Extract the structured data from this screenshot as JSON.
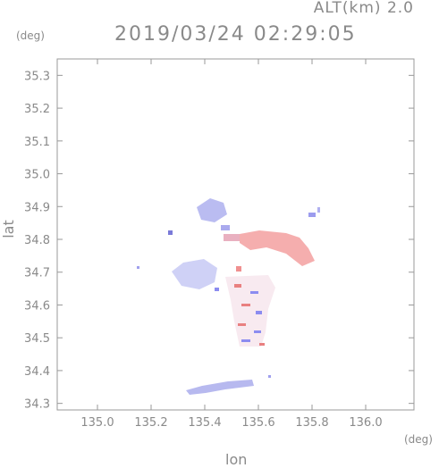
{
  "header": {
    "altitude_label": "ALT(km) 2.0",
    "timestamp": "2019/03/24 02:29:05"
  },
  "chart_data": {
    "type": "heatmap",
    "title": "2019/03/24 02:29:05",
    "subtitle": "ALT(km) 2.0",
    "xlabel": "lon",
    "ylabel": "lat",
    "x_unit": "(deg)",
    "y_unit": "(deg)",
    "xlim": [
      134.85,
      136.18
    ],
    "ylim": [
      34.28,
      35.35
    ],
    "xticks": [
      "135.0",
      "135.2",
      "135.4",
      "135.6",
      "135.8",
      "136.0"
    ],
    "yticks": [
      "34.3",
      "34.4",
      "34.5",
      "34.6",
      "34.7",
      "34.8",
      "34.9",
      "35.0",
      "35.1",
      "35.2",
      "35.3"
    ],
    "grid": false,
    "colors": {
      "positive": "#f08a8a",
      "negative": "#8c8cf0",
      "axis": "#999999"
    },
    "regions": [
      {
        "sign": "negative",
        "lon": [
          135.42,
          135.55
        ],
        "lat": [
          34.86,
          34.93
        ]
      },
      {
        "sign": "positive",
        "lon": [
          135.58,
          135.81
        ],
        "lat": [
          34.73,
          34.82
        ]
      },
      {
        "sign": "negative",
        "lon": [
          135.26,
          135.44
        ],
        "lat": [
          34.66,
          34.72
        ]
      },
      {
        "sign": "mixed",
        "lon": [
          135.49,
          135.63
        ],
        "lat": [
          34.46,
          34.71
        ]
      },
      {
        "sign": "negative",
        "lon": [
          135.35,
          135.55
        ],
        "lat": [
          34.32,
          34.35
        ]
      }
    ]
  }
}
